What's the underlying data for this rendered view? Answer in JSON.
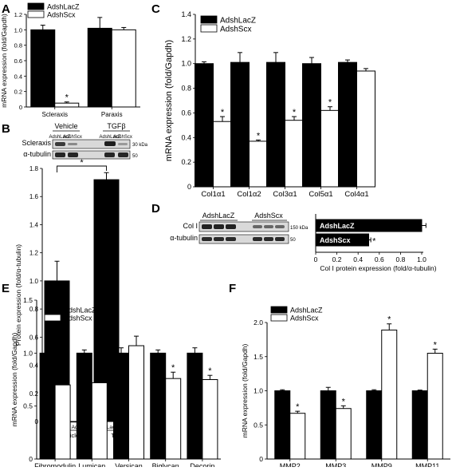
{
  "panels": {
    "A": "A",
    "B": "B",
    "C": "C",
    "D": "D",
    "E": "E",
    "F": "F"
  },
  "legend": {
    "lacz": "AdshLacZ",
    "scx": "AdshScx"
  },
  "colors": {
    "lacz": "#000000",
    "scx": "#ffffff",
    "gel_bg": "#d9d9d9",
    "gel_band": "#2a2a2a"
  },
  "star": "*",
  "blot_B": {
    "groups": [
      "Vehicle",
      "TGFβ"
    ],
    "lanes": [
      "AdshLacZ",
      "AdshScx",
      "AdshLacZ",
      "AdshScx"
    ],
    "rows": [
      "Scleraxis",
      "α-tubulin"
    ],
    "sizes": [
      "30 kDa",
      "50"
    ]
  },
  "blot_D": {
    "groups": [
      "AdshLacZ",
      "AdshScx"
    ],
    "rows": [
      "Col I",
      "α-tubulin"
    ],
    "sizes": [
      "150 kDa",
      "50"
    ]
  },
  "chart_data": [
    {
      "id": "A",
      "type": "bar",
      "categories": [
        "Scleraxis",
        "Paraxis"
      ],
      "series": [
        {
          "name": "AdshLacZ",
          "values": [
            1.0,
            1.02
          ],
          "errors": [
            0.06,
            0.14
          ]
        },
        {
          "name": "AdshScx",
          "values": [
            0.05,
            1.0
          ],
          "errors": [
            0.015,
            0.03
          ]
        }
      ],
      "stars": [
        [
          1,
          0
        ]
      ],
      "ylabel": "mRNA expression (fold/Gapdh)",
      "ylim": [
        0,
        1.2
      ],
      "yticks": [
        "0",
        "0.2",
        "0.4",
        "0.6",
        "0.8",
        "1.0",
        "1.2"
      ],
      "legend": "top-left"
    },
    {
      "id": "B",
      "type": "bar",
      "categories": [
        "Vehicle",
        "TGFβ"
      ],
      "sublabels": [
        "AdshLacZ",
        "AdshScx"
      ],
      "series": [
        {
          "name": "AdshLacZ",
          "values": [
            1.0,
            1.72
          ],
          "errors": [
            0.14,
            0.05
          ]
        },
        {
          "name": "AdshScx",
          "values": [
            0.0,
            0.01
          ],
          "errors": [
            0,
            0
          ]
        }
      ],
      "bracket_star": "*",
      "ylabel": "Protein expression (fold/α-tubulin)",
      "ylim": [
        0,
        1.8
      ],
      "yticks": [
        "0",
        "0.2",
        "0.4",
        "0.6",
        "0.8",
        "1.0",
        "1.2",
        "1.4",
        "1.6",
        "1.8"
      ]
    },
    {
      "id": "C",
      "type": "bar",
      "categories": [
        "Col1α1",
        "Col1α2",
        "Col3α1",
        "Col5α1",
        "Col4α1"
      ],
      "series": [
        {
          "name": "AdshLacZ",
          "values": [
            1.0,
            1.01,
            1.01,
            1.0,
            1.01
          ],
          "errors": [
            0.015,
            0.08,
            0.08,
            0.05,
            0.02
          ]
        },
        {
          "name": "AdshScx",
          "values": [
            0.53,
            0.37,
            0.54,
            0.62,
            0.94
          ],
          "errors": [
            0.04,
            0.01,
            0.03,
            0.03,
            0.02
          ]
        }
      ],
      "stars": [
        [
          1,
          0
        ],
        [
          1,
          1
        ],
        [
          1,
          2
        ],
        [
          1,
          3
        ]
      ],
      "ylabel": "mRNA expression (fold/Gapdh)",
      "ylim": [
        0,
        1.4
      ],
      "yticks": [
        "0",
        "0.2",
        "0.4",
        "0.6",
        "0.8",
        "1.0",
        "1.2",
        "1.4"
      ],
      "legend": "top-left"
    },
    {
      "id": "D",
      "type": "bar",
      "orientation": "horizontal",
      "categories": [
        "AdshLacZ",
        "AdshScx"
      ],
      "values": [
        1.0,
        0.5
      ],
      "errors": [
        0.04,
        0.02
      ],
      "stars": [
        1
      ],
      "xlabel": "Col I protein expression (fold/α-tubulin)",
      "xlim": [
        0,
        1.0
      ],
      "xticks": [
        "0",
        "0.2",
        "0.4",
        "0.6",
        "0.8",
        "1.0"
      ]
    },
    {
      "id": "E",
      "type": "bar",
      "categories": [
        "Fibromodulin",
        "Lumican",
        "Versican",
        "Biglycan",
        "Decorin"
      ],
      "series": [
        {
          "name": "AdshLacZ",
          "values": [
            1.0,
            1.0,
            1.0,
            1.0,
            1.0
          ],
          "errors": [
            0.03,
            0.03,
            0.05,
            0.03,
            0.05
          ]
        },
        {
          "name": "AdshScx",
          "values": [
            0.7,
            0.72,
            1.07,
            0.76,
            0.75
          ],
          "errors": [
            0.02,
            0.03,
            0.09,
            0.06,
            0.04
          ]
        }
      ],
      "stars": [
        [
          1,
          0
        ],
        [
          1,
          1
        ],
        [
          1,
          3
        ],
        [
          1,
          4
        ]
      ],
      "ylabel": "mRNA expression (fold/Gapdh)",
      "ylim": [
        0,
        1.5
      ],
      "yticks": [
        "0",
        "0.5",
        "1.0",
        "1.5"
      ],
      "legend": "top-left"
    },
    {
      "id": "F",
      "type": "bar",
      "categories": [
        "MMP2",
        "MMP3",
        "MMP9",
        "MMP11"
      ],
      "series": [
        {
          "name": "AdshLacZ",
          "values": [
            1.0,
            1.0,
            1.0,
            1.0
          ],
          "errors": [
            0.015,
            0.05,
            0.015,
            0.01
          ]
        },
        {
          "name": "AdshScx",
          "values": [
            0.67,
            0.74,
            1.89,
            1.55
          ],
          "errors": [
            0.03,
            0.04,
            0.09,
            0.06
          ]
        }
      ],
      "stars": [
        [
          1,
          0
        ],
        [
          1,
          1
        ],
        [
          1,
          2
        ],
        [
          1,
          3
        ]
      ],
      "ylabel": "mRNA expression (fold/Gapdh)",
      "ylim": [
        0,
        2.0
      ],
      "yticks": [
        "0",
        "0.5",
        "1.0",
        "1.5",
        "2.0"
      ],
      "legend": "top-left"
    }
  ]
}
